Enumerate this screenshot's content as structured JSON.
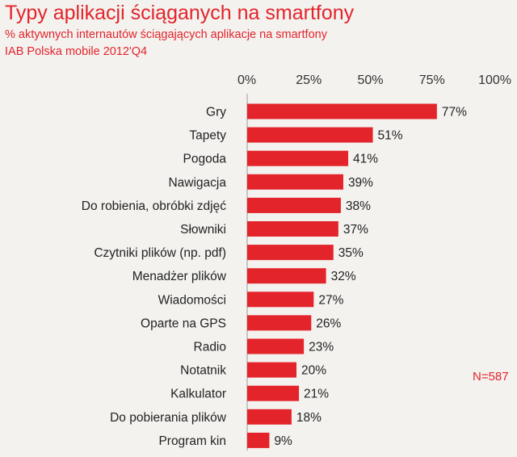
{
  "header": {
    "title": "Typy aplikacji ściąganych na smartfony",
    "subtitle": "% aktywnych internautów ściągających aplikacje na smartfony",
    "source": "IAB Polska mobile 2012'Q4",
    "sample_note": "N=587"
  },
  "colors": {
    "bar": "#e3242b",
    "accent_text": "#e3242b",
    "background": "#f3f2ef"
  },
  "chart_data": {
    "type": "bar",
    "orientation": "horizontal",
    "title": "Typy aplikacji ściąganych na smartfony",
    "xlabel": "",
    "ylabel": "",
    "xlim": [
      0,
      100
    ],
    "x_ticks": [
      0,
      25,
      50,
      75,
      100
    ],
    "x_tick_labels": [
      "0%",
      "25%",
      "50%",
      "75%",
      "100%"
    ],
    "axis_position": "top",
    "grid": false,
    "categories": [
      "Gry",
      "Tapety",
      "Pogoda",
      "Nawigacja",
      "Do robienia, obróbki zdjęć",
      "Słowniki",
      "Czytniki plików (np. pdf)",
      "Menadżer plików",
      "Wiadomości",
      "Oparte na GPS",
      "Radio",
      "Notatnik",
      "Kalkulator",
      "Do pobierania plików",
      "Program kin"
    ],
    "values": [
      77,
      51,
      41,
      39,
      38,
      37,
      35,
      32,
      27,
      26,
      23,
      20,
      21,
      18,
      9
    ],
    "value_labels": [
      "77%",
      "51%",
      "41%",
      "39%",
      "38%",
      "37%",
      "35%",
      "32%",
      "27%",
      "26%",
      "23%",
      "20%",
      "21%",
      "18%",
      "9%"
    ]
  }
}
